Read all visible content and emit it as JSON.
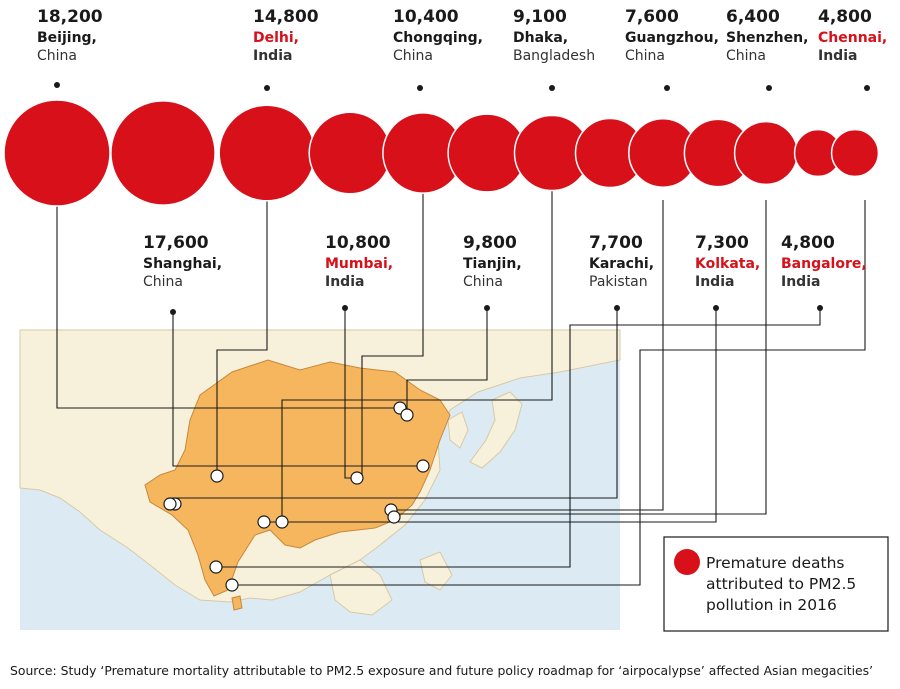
{
  "colors": {
    "bubble": "#d7101a",
    "india_label": "#d7101a",
    "default_label": "#1a1a1a",
    "land_highlight": "#f5b65e",
    "land_other": "#f7f1dc",
    "sea": "#dcebf3",
    "connector": "#1a1a1a"
  },
  "legend": {
    "lines": [
      "Premature deaths",
      "attributed to PM2.5",
      "pollution in 2016"
    ]
  },
  "source": "Source: Study ‘Premature mortality attributable to PM2.5 exposure and future policy roadmap for ‘airpocalypse’ affected Asian megacities’",
  "chart_data": {
    "type": "bubble",
    "categories": [
      "Beijing",
      "Shanghai",
      "Delhi",
      "Mumbai",
      "Chongqing",
      "Tianjin",
      "Dhaka",
      "Karachi",
      "Guangzhou",
      "Kolkata",
      "Shenzhen",
      "Bangalore",
      "Chennai"
    ],
    "values": [
      18200,
      17600,
      14800,
      10800,
      10400,
      9800,
      9100,
      7700,
      7600,
      7300,
      6400,
      4800,
      4800
    ],
    "cities": [
      {
        "value_label": "18,200",
        "city": "Beijing,",
        "country": "China",
        "india": false
      },
      {
        "value_label": "17,600",
        "city": "Shanghai,",
        "country": "China",
        "india": false
      },
      {
        "value_label": "14,800",
        "city": "Delhi,",
        "country": "India",
        "india": true
      },
      {
        "value_label": "10,800",
        "city": "Mumbai,",
        "country": "India",
        "india": true
      },
      {
        "value_label": "10,400",
        "city": "Chongqing,",
        "country": "China",
        "india": false
      },
      {
        "value_label": "9,800",
        "city": "Tianjin,",
        "country": "China",
        "india": false
      },
      {
        "value_label": "9,100",
        "city": "Dhaka,",
        "country": "Bangladesh",
        "india": false
      },
      {
        "value_label": "7,700",
        "city": "Karachi,",
        "country": "Pakistan",
        "india": false
      },
      {
        "value_label": "7,600",
        "city": "Guangzhou,",
        "country": "China",
        "india": false
      },
      {
        "value_label": "7,300",
        "city": "Kolkata,",
        "country": "India",
        "india": true
      },
      {
        "value_label": "6,400",
        "city": "Shenzhen,",
        "country": "China",
        "india": false
      },
      {
        "value_label": "4,800",
        "city": "Bangalore,",
        "country": "India",
        "india": true
      },
      {
        "value_label": "4,800",
        "city": "Chennai,",
        "country": "India",
        "india": true
      }
    ]
  }
}
